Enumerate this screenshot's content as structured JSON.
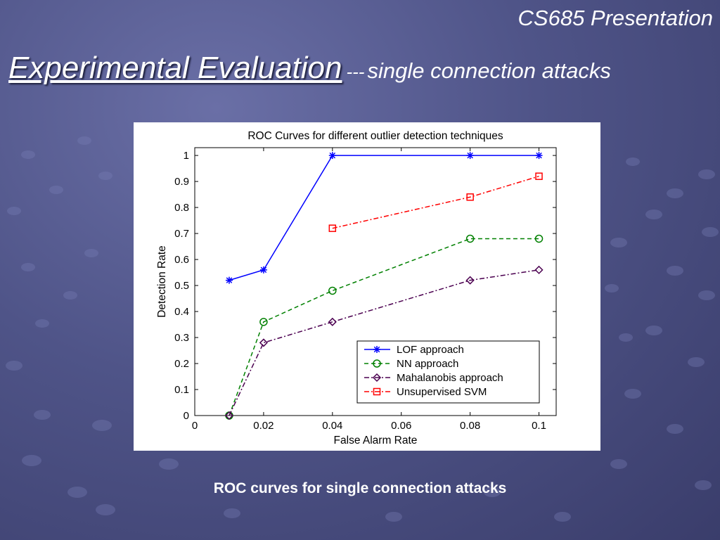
{
  "slide": {
    "course": "CS685 Presentation",
    "title": "Experimental Evaluation",
    "separator": "---",
    "subtitle": "single connection attacks",
    "caption": "ROC curves for single connection attacks"
  },
  "colors": {
    "LOF approach": "#0000ff",
    "NN approach": "#008000",
    "Mahalanobis approach": "#4b0050",
    "Unsupervised SVM": "#ff0000"
  },
  "chart_data": {
    "type": "line",
    "title": "ROC Curves for different outlier detection techniques",
    "xlabel": "False Alarm Rate",
    "ylabel": "Detection Rate",
    "xlim": [
      0,
      0.105
    ],
    "ylim": [
      0,
      1.03
    ],
    "xticks": [
      0,
      0.02,
      0.04,
      0.06,
      0.08,
      0.1
    ],
    "xtick_labels": [
      "0",
      "0.02",
      "0.04",
      "0.06",
      "0.08",
      "0.1"
    ],
    "yticks": [
      0,
      0.1,
      0.2,
      0.3,
      0.4,
      0.5,
      0.6,
      0.7,
      0.8,
      0.9,
      1
    ],
    "ytick_labels": [
      "0",
      "0.1",
      "0.2",
      "0.3",
      "0.4",
      "0.5",
      "0.6",
      "0.7",
      "0.8",
      "0.9",
      "1"
    ],
    "grid": false,
    "legend": "bottom-right",
    "series": [
      {
        "name": "LOF approach",
        "marker": "star",
        "dash": "solid",
        "x": [
          0.01,
          0.02,
          0.04,
          0.08,
          0.1
        ],
        "y": [
          0.52,
          0.56,
          1.0,
          1.0,
          1.0
        ]
      },
      {
        "name": "NN approach",
        "marker": "circle",
        "dash": "dashed",
        "x": [
          0.01,
          0.02,
          0.04,
          0.08,
          0.1
        ],
        "y": [
          0.0,
          0.36,
          0.48,
          0.68,
          0.68
        ]
      },
      {
        "name": "Mahalanobis approach",
        "marker": "diamond",
        "dash": "dashdot",
        "x": [
          0.01,
          0.02,
          0.04,
          0.08,
          0.1
        ],
        "y": [
          0.0,
          0.28,
          0.36,
          0.52,
          0.56
        ]
      },
      {
        "name": "Unsupervised SVM",
        "marker": "square",
        "dash": "dashdot",
        "x": [
          0.04,
          0.08,
          0.1
        ],
        "y": [
          0.72,
          0.84,
          0.92
        ]
      }
    ]
  }
}
